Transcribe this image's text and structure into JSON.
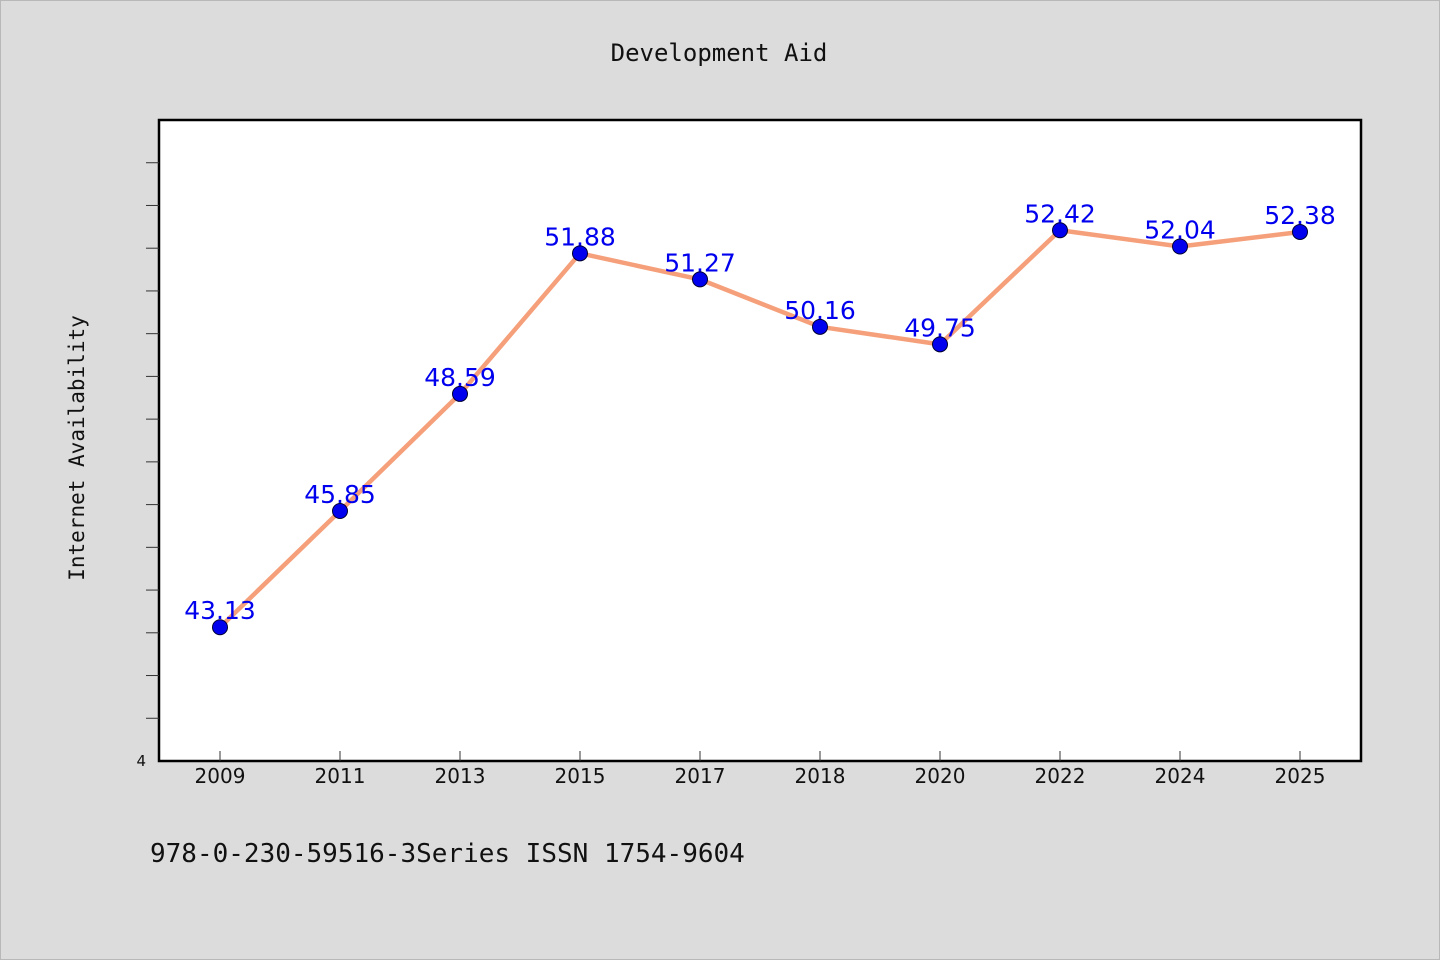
{
  "chart_data": {
    "type": "line",
    "title": "Development Aid",
    "xlabel": "",
    "ylabel": "Internet Availability",
    "categories": [
      "2009",
      "2011",
      "2013",
      "2015",
      "2017",
      "2018",
      "2020",
      "2022",
      "2024",
      "2025"
    ],
    "series": [
      {
        "values": [
          43.13,
          45.85,
          48.59,
          51.88,
          51.27,
          50.16,
          49.75,
          52.42,
          52.04,
          52.38
        ],
        "labels": [
          "43.13",
          "45.85",
          "48.59",
          "51.88",
          "51.27",
          "50.16",
          "49.75",
          "52.42",
          "52.04",
          "52.38"
        ]
      }
    ],
    "ylim": [
      40,
      55
    ],
    "y_tick_labels": [
      "4"
    ],
    "grid": false,
    "legend": "none",
    "colors": {
      "line": "#f5a07a",
      "marker": "#0000ee",
      "data_label": "#0000ee",
      "background": "#dcdcdc",
      "plot_background": "#ffffff"
    }
  },
  "footer": {
    "note": "978-0-230-59516-3Series ISSN 1754-9604"
  }
}
